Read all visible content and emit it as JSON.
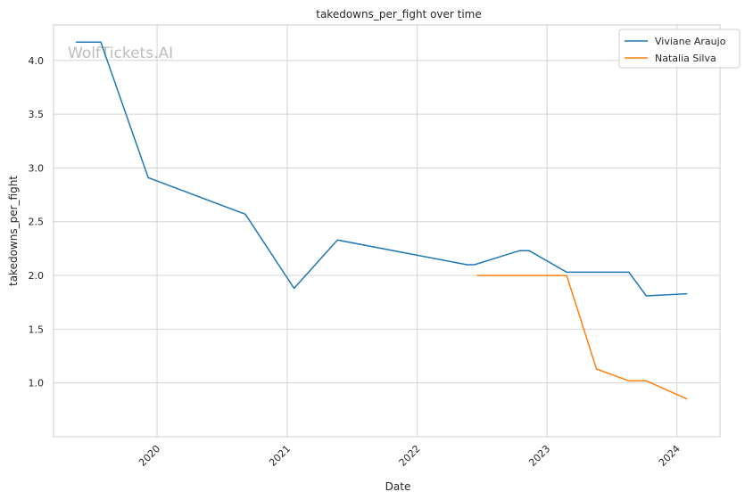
{
  "watermark": "WolfTickets.AI",
  "chart_data": {
    "type": "line",
    "title": "takedowns_per_fight over time",
    "xlabel": "Date",
    "ylabel": "takedowns_per_fight",
    "x_ticks": [
      "2020",
      "2021",
      "2022",
      "2023",
      "2024"
    ],
    "y_ticks": [
      "1.0",
      "1.5",
      "2.0",
      "2.5",
      "3.0",
      "3.5",
      "4.0"
    ],
    "xlim": [
      "2019-03-16",
      "2024-05-01"
    ],
    "ylim": [
      0.5,
      4.33
    ],
    "grid": true,
    "legend_position": "top-right",
    "colors": {
      "Viviane Araujo": "#1f77b4",
      "Natalia Silva": "#ff7f0e"
    },
    "series": [
      {
        "name": "Viviane Araujo",
        "points": [
          [
            "2019-05-18",
            4.17
          ],
          [
            "2019-07-27",
            4.17
          ],
          [
            "2019-12-07",
            2.91
          ],
          [
            "2020-09-05",
            2.57
          ],
          [
            "2021-01-20",
            1.88
          ],
          [
            "2021-05-22",
            2.33
          ],
          [
            "2022-05-21",
            2.1
          ],
          [
            "2022-06-11",
            2.1
          ],
          [
            "2022-10-15",
            2.23
          ],
          [
            "2022-11-12",
            2.23
          ],
          [
            "2023-02-25",
            2.03
          ],
          [
            "2023-08-19",
            2.03
          ],
          [
            "2023-10-07",
            1.81
          ],
          [
            "2024-01-30",
            1.83
          ]
        ]
      },
      {
        "name": "Natalia Silva",
        "points": [
          [
            "2022-06-18",
            2.0
          ],
          [
            "2023-02-25",
            2.0
          ],
          [
            "2023-05-20",
            1.13
          ],
          [
            "2023-08-19",
            1.02
          ],
          [
            "2023-10-07",
            1.02
          ],
          [
            "2024-01-30",
            0.85
          ]
        ]
      }
    ]
  }
}
